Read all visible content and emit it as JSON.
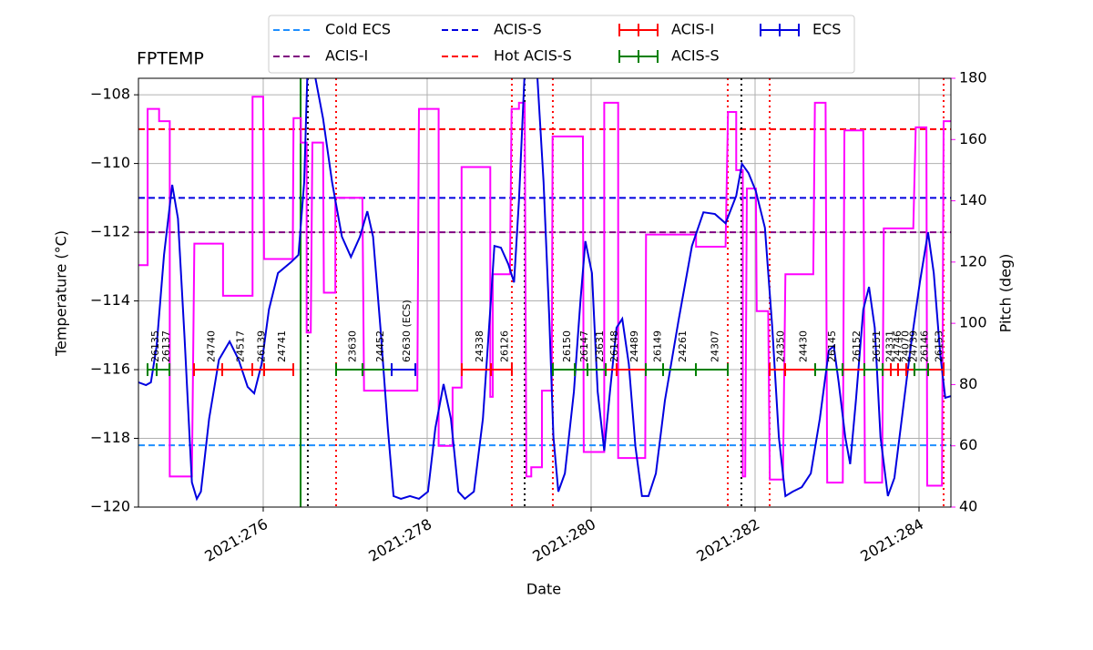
{
  "chart_data": {
    "type": "line",
    "title": "FPTEMP",
    "xlabel": "Date",
    "ylabel": "Temperature (°C)",
    "y2label": "Pitch (deg)",
    "y2color": "magenta",
    "xlim": [
      274.478,
      284.389
    ],
    "xticks": [
      {
        "value": 276,
        "label": "2021:276"
      },
      {
        "value": 278,
        "label": "2021:278"
      },
      {
        "value": 280,
        "label": "2021:280"
      },
      {
        "value": 282,
        "label": "2021:282"
      },
      {
        "value": 284,
        "label": "2021:284"
      }
    ],
    "ylim": [
      -120,
      -107.52
    ],
    "yticks": [
      {
        "value": -120,
        "label": "−120"
      },
      {
        "value": -118,
        "label": "−118"
      },
      {
        "value": -116,
        "label": "−116"
      },
      {
        "value": -114,
        "label": "−114"
      },
      {
        "value": -112,
        "label": "−112"
      },
      {
        "value": -110,
        "label": "−110"
      },
      {
        "value": -108,
        "label": "−108"
      }
    ],
    "y2lim": [
      40,
      180
    ],
    "y2ticks": [
      40,
      60,
      80,
      100,
      120,
      140,
      160,
      180
    ],
    "grid": true,
    "series": [
      {
        "color": "#0000e0",
        "x": [
          274.48,
          274.57,
          274.63,
          274.7,
          274.79,
          274.89,
          274.96,
          275.04,
          275.13,
          275.19,
          275.24,
          275.34,
          275.46,
          275.59,
          275.7,
          275.81,
          275.89,
          275.98,
          276.07,
          276.18,
          276.34,
          276.43,
          276.5,
          276.54,
          276.62,
          276.73,
          276.84,
          276.96,
          277.07,
          277.18,
          277.27,
          277.34,
          277.43,
          277.52,
          277.59,
          277.68,
          277.79,
          277.9,
          278.01,
          278.1,
          278.2,
          278.29,
          278.38,
          278.46,
          278.57,
          278.68,
          278.77,
          278.82,
          278.9,
          278.99,
          279.06,
          279.12,
          279.19,
          279.34,
          279.42,
          279.49,
          279.54,
          279.6,
          279.68,
          279.79,
          279.87,
          279.93,
          280.01,
          280.08,
          280.16,
          280.23,
          280.31,
          280.38,
          280.46,
          280.54,
          280.62,
          280.7,
          280.79,
          280.9,
          281.07,
          281.23,
          281.37,
          281.51,
          281.64,
          281.77,
          281.84,
          281.92,
          282.01,
          282.12,
          282.21,
          282.29,
          282.37,
          282.46,
          282.57,
          282.68,
          282.79,
          282.9,
          282.96,
          283.02,
          283.1,
          283.16,
          283.23,
          283.32,
          283.39,
          283.46,
          283.53,
          283.62,
          283.7,
          283.79,
          283.9,
          284.01,
          284.11,
          284.18,
          284.26,
          284.32,
          284.39
        ],
        "values": [
          -116.37,
          -116.45,
          -116.37,
          -115.31,
          -112.66,
          -110.62,
          -111.6,
          -115.05,
          -119.28,
          -119.76,
          -119.55,
          -117.43,
          -115.71,
          -115.18,
          -115.71,
          -116.5,
          -116.69,
          -115.84,
          -114.25,
          -113.19,
          -112.87,
          -112.66,
          -110.54,
          -107.3,
          -107.3,
          -108.69,
          -110.54,
          -112.13,
          -112.72,
          -112.13,
          -111.39,
          -112.13,
          -114.78,
          -117.7,
          -119.68,
          -119.76,
          -119.68,
          -119.76,
          -119.55,
          -117.7,
          -116.42,
          -117.43,
          -119.55,
          -119.76,
          -119.55,
          -117.43,
          -114.25,
          -112.4,
          -112.45,
          -112.93,
          -113.46,
          -111.07,
          -107.3,
          -107.3,
          -110.54,
          -114.52,
          -117.96,
          -119.55,
          -119.02,
          -116.64,
          -113.99,
          -112.26,
          -113.19,
          -116.64,
          -118.36,
          -116.64,
          -114.78,
          -114.52,
          -115.84,
          -118.23,
          -119.68,
          -119.68,
          -119.02,
          -116.9,
          -114.52,
          -112.4,
          -111.42,
          -111.47,
          -111.74,
          -110.94,
          -110.01,
          -110.28,
          -110.81,
          -111.87,
          -114.78,
          -117.96,
          -119.68,
          -119.55,
          -119.42,
          -119.02,
          -117.43,
          -115.44,
          -115.31,
          -116.37,
          -117.96,
          -118.75,
          -116.9,
          -114.25,
          -113.59,
          -114.78,
          -117.96,
          -119.68,
          -119.15,
          -117.43,
          -115.31,
          -113.46,
          -112.0,
          -113.19,
          -115.58,
          -116.82,
          -116.77
        ]
      },
      {
        "color": "magenta",
        "axis": "y2",
        "x": [
          274.48,
          274.59,
          274.59,
          274.73,
          274.73,
          274.86,
          274.86,
          275.13,
          275.16,
          275.51,
          275.51,
          275.87,
          275.87,
          276.0,
          276.01,
          276.36,
          276.37,
          276.46,
          276.46,
          276.53,
          276.53,
          276.58,
          276.6,
          276.73,
          276.74,
          276.88,
          276.88,
          277.21,
          277.23,
          277.88,
          277.9,
          278.14,
          278.14,
          278.31,
          278.31,
          278.42,
          278.42,
          278.77,
          278.77,
          278.8,
          278.8,
          279.01,
          279.03,
          279.12,
          279.12,
          279.19,
          279.21,
          279.27,
          279.27,
          279.4,
          279.4,
          279.52,
          279.53,
          279.9,
          279.91,
          280.16,
          280.16,
          280.33,
          280.33,
          280.66,
          280.67,
          281.28,
          281.28,
          281.64,
          281.67,
          281.77,
          281.77,
          281.85,
          281.85,
          281.88,
          281.9,
          282.01,
          282.02,
          282.16,
          282.18,
          282.34,
          282.37,
          282.71,
          282.73,
          282.86,
          282.88,
          283.07,
          283.09,
          283.32,
          283.34,
          283.55,
          283.57,
          283.93,
          283.96,
          284.09,
          284.1,
          284.28,
          284.3,
          284.39
        ],
        "values": [
          119,
          119,
          170,
          170,
          166,
          166,
          50,
          50,
          126,
          126,
          109,
          109,
          174,
          174,
          121,
          121,
          167,
          167,
          159,
          159,
          97,
          97,
          159,
          159,
          110,
          110,
          141,
          141,
          78,
          78,
          170,
          170,
          60,
          60,
          79,
          79,
          151,
          151,
          76,
          76,
          116,
          116,
          170,
          170,
          172,
          172,
          50,
          50,
          53,
          53,
          78,
          78,
          161,
          161,
          58,
          58,
          172,
          172,
          56,
          56,
          129,
          129,
          125,
          125,
          169,
          169,
          150,
          150,
          50,
          50,
          144,
          144,
          104,
          104,
          49,
          49,
          116,
          116,
          172,
          172,
          48,
          48,
          163,
          163,
          48,
          48,
          131,
          131,
          164,
          164,
          47,
          47,
          166,
          166
        ]
      }
    ],
    "hlines": [
      {
        "name": "Cold ECS",
        "value": -118.2,
        "color": "#1f8fff"
      },
      {
        "name": "ACIS-I",
        "value": -112,
        "color": "purple"
      },
      {
        "name": "ACIS-S",
        "value": -111,
        "color": "#0000e0"
      },
      {
        "name": "Hot ACIS-S",
        "value": -109,
        "color": "red"
      }
    ],
    "vlines": [
      {
        "value": 276.456,
        "color": "green",
        "style": "solid"
      },
      {
        "value": 276.544,
        "color": "black",
        "style": "dotted"
      },
      {
        "value": 279.189,
        "color": "black",
        "style": "dotted"
      },
      {
        "value": 281.833,
        "color": "black",
        "style": "dotted"
      },
      {
        "value": 276.889,
        "color": "red",
        "style": "dotted"
      },
      {
        "value": 279.033,
        "color": "red",
        "style": "dotted"
      },
      {
        "value": 279.533,
        "color": "red",
        "style": "dotted"
      },
      {
        "value": 281.667,
        "color": "red",
        "style": "dotted"
      },
      {
        "value": 282.178,
        "color": "red",
        "style": "dotted"
      },
      {
        "value": 284.3,
        "color": "red",
        "style": "dotted"
      }
    ],
    "obs": [
      {
        "name": "ACIS-I",
        "color": "red",
        "y": -116,
        "segments": [
          {
            "start": 275.156,
            "end": 275.5,
            "label": "24740"
          },
          {
            "start": 275.5,
            "end": 275.867,
            "label": "24517"
          },
          {
            "start": 275.867,
            "end": 276.011,
            "label": "26139"
          },
          {
            "start": 276.011,
            "end": 276.367,
            "label": "24741"
          },
          {
            "start": 278.422,
            "end": 278.778,
            "label": "24338"
          },
          {
            "start": 278.778,
            "end": 279.033,
            "label": "26126"
          },
          {
            "start": 280.178,
            "end": 280.311,
            "label": "26148"
          },
          {
            "start": 280.311,
            "end": 280.667,
            "label": "24489"
          },
          {
            "start": 282.178,
            "end": 282.367,
            "label": "24350"
          },
          {
            "start": 282.367,
            "end": 282.733,
            "label": "24430"
          },
          {
            "start": 283.067,
            "end": 283.333,
            "label": "26152"
          },
          {
            "start": 283.556,
            "end": 283.656,
            "label": "24331"
          },
          {
            "start": 283.656,
            "end": 283.744,
            "label": "24746"
          },
          {
            "start": 283.744,
            "end": 283.844,
            "label": "24070"
          },
          {
            "start": 283.844,
            "end": 283.944,
            "label": "24739"
          },
          {
            "start": 284.111,
            "end": 284.3,
            "label": "26153"
          }
        ]
      },
      {
        "name": "ACIS-S",
        "color": "green",
        "y": -116,
        "segments": [
          {
            "start": 274.589,
            "end": 274.7,
            "label": "26135"
          },
          {
            "start": 274.7,
            "end": 274.856,
            "label": "26137"
          },
          {
            "start": 276.889,
            "end": 277.211,
            "label": "23630"
          },
          {
            "start": 277.211,
            "end": 277.567,
            "label": "24452"
          },
          {
            "start": 279.533,
            "end": 279.8,
            "label": "26150"
          },
          {
            "start": 279.8,
            "end": 279.956,
            "label": "26147"
          },
          {
            "start": 279.956,
            "end": 280.178,
            "label": "23631"
          },
          {
            "start": 280.667,
            "end": 280.878,
            "label": "26149"
          },
          {
            "start": 280.878,
            "end": 281.278,
            "label": "24261"
          },
          {
            "start": 281.278,
            "end": 281.667,
            "label": "24307"
          },
          {
            "start": 282.733,
            "end": 283.067,
            "label": "26145"
          },
          {
            "start": 283.333,
            "end": 283.556,
            "label": "26151"
          },
          {
            "start": 283.944,
            "end": 284.111,
            "label": "26146"
          }
        ]
      },
      {
        "name": "ECS",
        "color": "#0000e0",
        "y": -116,
        "segments": [
          {
            "start": 277.567,
            "end": 277.856,
            "label": "62630 (ECS)"
          }
        ]
      }
    ]
  }
}
